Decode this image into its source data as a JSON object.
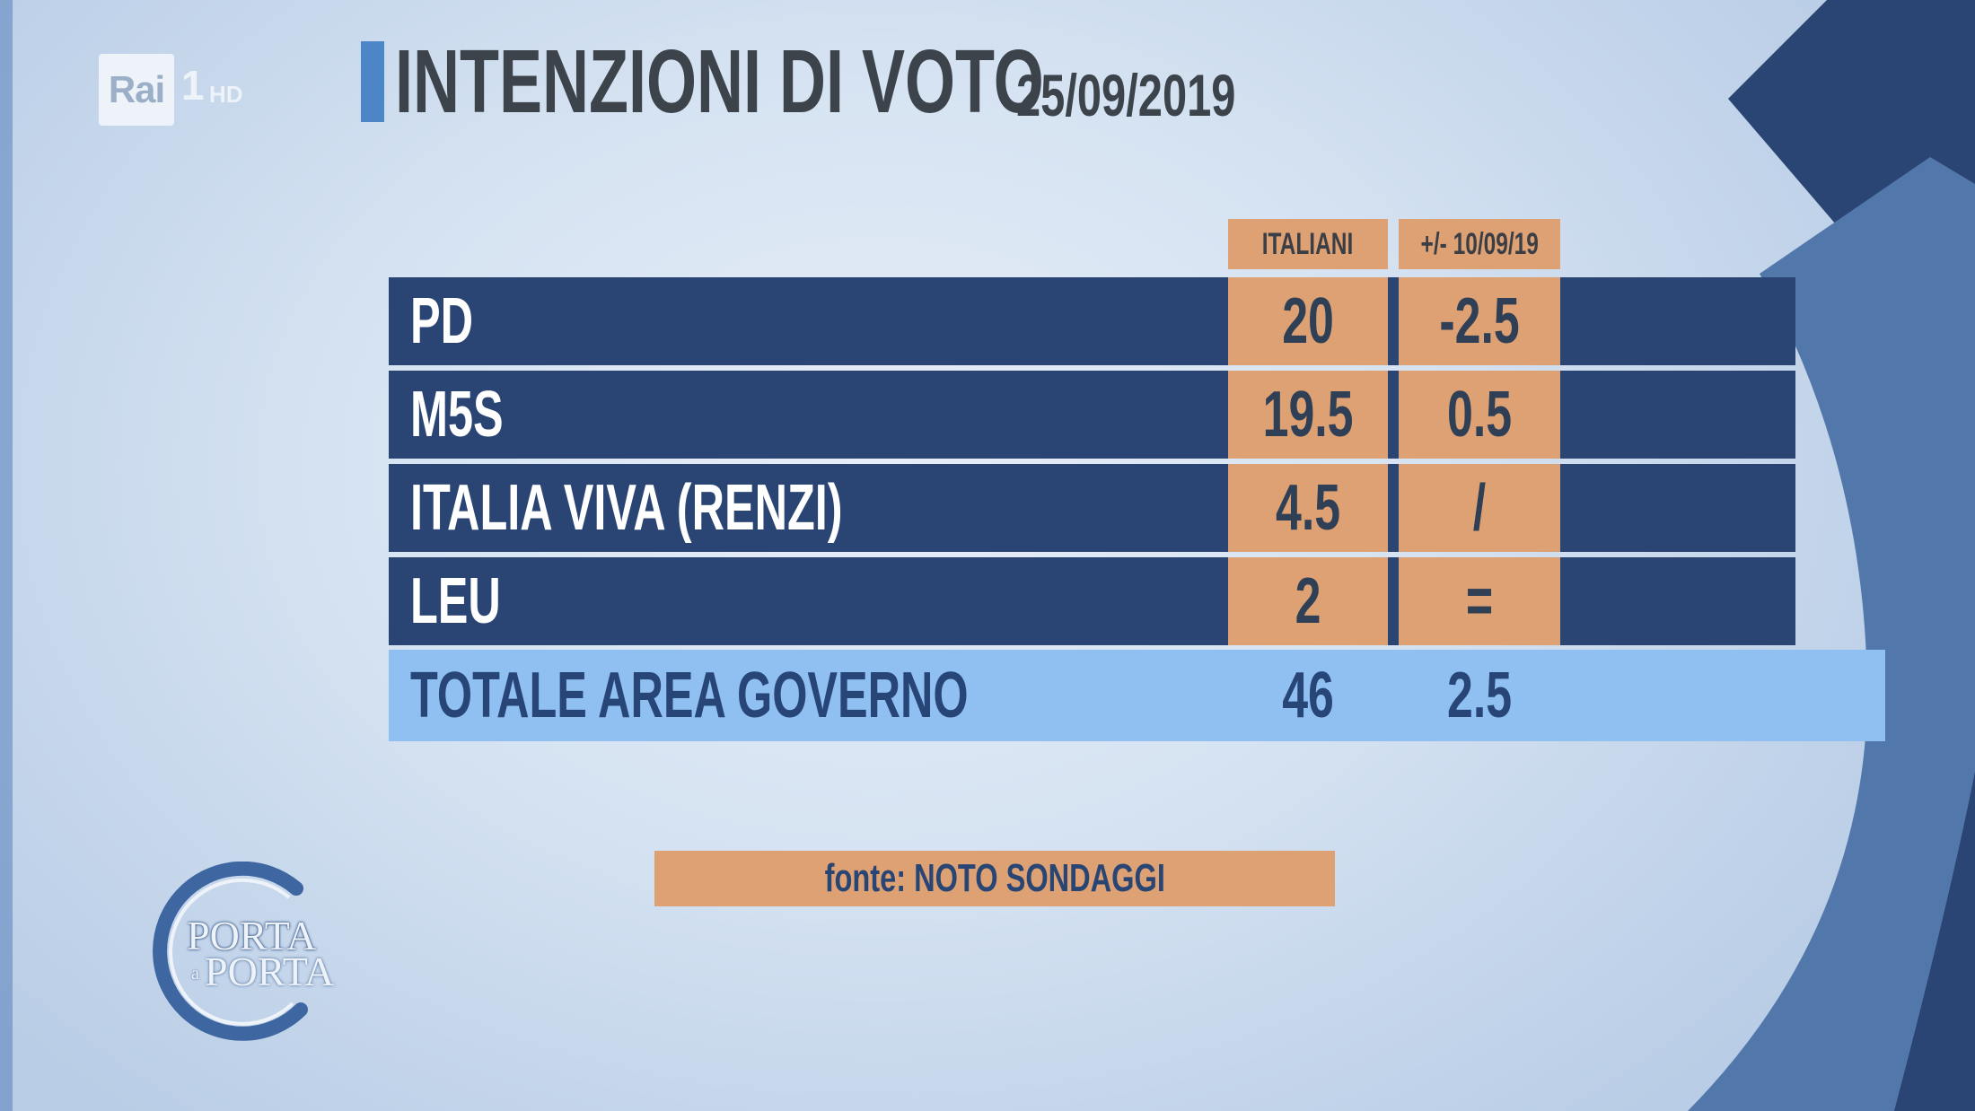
{
  "channel": {
    "brand": "Rai",
    "number": "1",
    "quality": "HD"
  },
  "header": {
    "title": "INTENZIONI DI VOTO",
    "date": "25/09/2019"
  },
  "chart_data": {
    "type": "table",
    "columns": [
      "ITALIANI",
      "+/- 10/09/19"
    ],
    "rows": [
      {
        "label": "PD",
        "italiani": "20",
        "delta": "-2.5"
      },
      {
        "label": "M5S",
        "italiani": "19.5",
        "delta": "0.5"
      },
      {
        "label": "ITALIA VIVA (RENZI)",
        "italiani": "4.5",
        "delta": "/"
      },
      {
        "label": "LEU",
        "italiani": "2",
        "delta": "="
      }
    ],
    "total": {
      "label": "TOTALE AREA GOVERNO",
      "italiani": "46",
      "delta": "2.5"
    }
  },
  "source": "fonte: NOTO SONDAGGI",
  "show_logo": {
    "line1": "PORTA",
    "connector": "a",
    "line2": "PORTA"
  },
  "colors": {
    "navy": "#2a4573",
    "orange": "#dda174",
    "light_blue": "#8fc0f1",
    "title_gray": "#3c434b"
  }
}
